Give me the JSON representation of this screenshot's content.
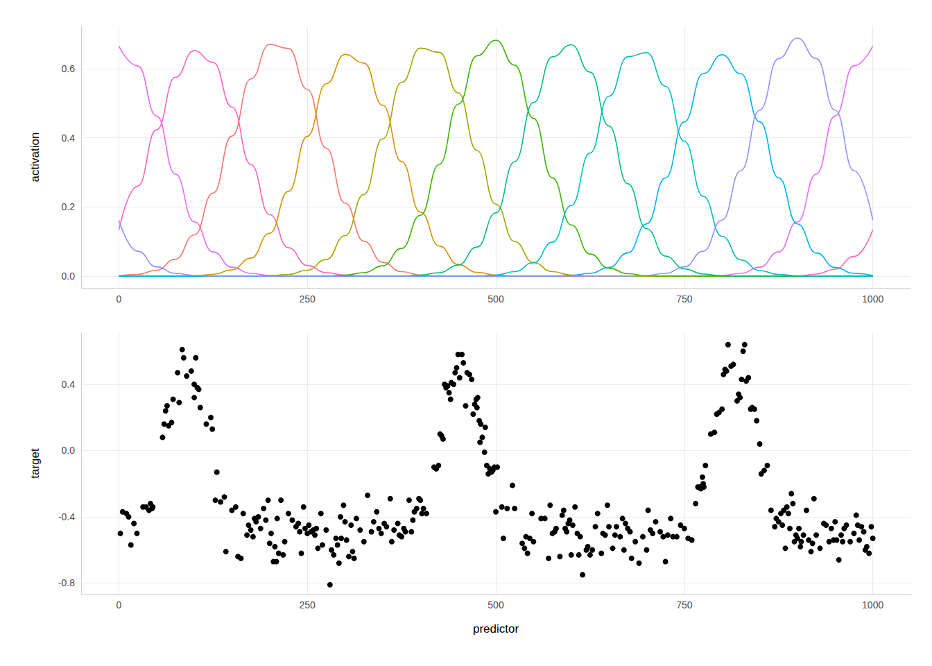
{
  "chart_data": [
    {
      "type": "line",
      "y_label": "activation",
      "x": [
        0,
        25,
        50,
        75,
        100,
        125,
        150,
        175,
        200,
        225,
        250,
        275,
        300,
        325,
        350,
        375,
        400,
        425,
        450,
        475,
        500,
        525,
        550,
        575,
        600,
        625,
        650,
        675,
        700,
        725,
        750,
        775,
        800,
        825,
        850,
        875,
        900,
        925,
        950,
        975,
        1000
      ],
      "series": [
        {
          "color": "#E76BF3",
          "values": [
            0.665,
            0.608,
            0.463,
            0.295,
            0.157,
            0.07,
            0.026,
            0.008,
            0.002,
            0,
            0,
            0,
            0,
            0,
            0,
            0,
            0,
            0,
            0,
            0,
            0,
            0,
            0,
            0,
            0,
            0,
            0,
            0,
            0,
            0,
            0,
            0,
            0.002,
            0.008,
            0.026,
            0.07,
            0.157,
            0.295,
            0.463,
            0.608,
            0.665
          ]
        },
        {
          "color": "#FF62BC",
          "values": [
            0.134,
            0.26,
            0.423,
            0.575,
            0.652,
            0.618,
            0.489,
            0.323,
            0.178,
            0.082,
            0.031,
            0.01,
            0.003,
            0,
            0,
            0,
            0,
            0,
            0,
            0,
            0,
            0,
            0,
            0,
            0,
            0,
            0,
            0,
            0,
            0,
            0,
            0,
            0,
            0,
            0,
            0,
            0,
            0.006,
            0.02,
            0.057,
            0.134
          ]
        },
        {
          "color": "#F8766D",
          "values": [
            0.001,
            0.005,
            0.017,
            0.049,
            0.119,
            0.24,
            0.405,
            0.57,
            0.67,
            0.658,
            0.54,
            0.37,
            0.211,
            0.101,
            0.04,
            0.013,
            0.003,
            0,
            0,
            0,
            0,
            0,
            0,
            0,
            0,
            0,
            0,
            0,
            0,
            0,
            0,
            0,
            0,
            0,
            0,
            0,
            0,
            0,
            0,
            0,
            0
          ]
        },
        {
          "color": "#D89000",
          "values": [
            0,
            0,
            0,
            0,
            0.001,
            0.005,
            0.018,
            0.052,
            0.124,
            0.245,
            0.404,
            0.556,
            0.641,
            0.616,
            0.494,
            0.331,
            0.185,
            0.087,
            0.034,
            0.011,
            0.003,
            0,
            0,
            0,
            0,
            0,
            0,
            0,
            0,
            0,
            0,
            0,
            0,
            0,
            0,
            0,
            0,
            0,
            0,
            0,
            0
          ]
        },
        {
          "color": "#A3A500",
          "values": [
            0,
            0,
            0,
            0,
            0,
            0,
            0,
            0,
            0.001,
            0.005,
            0.017,
            0.048,
            0.117,
            0.236,
            0.397,
            0.56,
            0.659,
            0.647,
            0.53,
            0.363,
            0.208,
            0.1,
            0.039,
            0.013,
            0.003,
            0,
            0,
            0,
            0,
            0,
            0,
            0,
            0,
            0,
            0,
            0,
            0,
            0,
            0,
            0,
            0
          ]
        },
        {
          "color": "#39B600",
          "values": [
            0,
            0,
            0,
            0,
            0,
            0,
            0,
            0,
            0,
            0,
            0,
            0,
            0.003,
            0.01,
            0.03,
            0.08,
            0.176,
            0.323,
            0.497,
            0.637,
            0.682,
            0.61,
            0.456,
            0.284,
            0.148,
            0.064,
            0.023,
            0.007,
            0.001,
            0,
            0,
            0,
            0,
            0,
            0,
            0,
            0,
            0,
            0,
            0,
            0
          ]
        },
        {
          "color": "#00BF7D",
          "values": [
            0,
            0,
            0,
            0,
            0,
            0,
            0,
            0,
            0,
            0,
            0,
            0,
            0,
            0,
            0,
            0,
            0.003,
            0.01,
            0.032,
            0.084,
            0.183,
            0.331,
            0.502,
            0.634,
            0.669,
            0.59,
            0.434,
            0.267,
            0.137,
            0.058,
            0.021,
            0.006,
            0.001,
            0,
            0,
            0,
            0,
            0,
            0,
            0,
            0
          ]
        },
        {
          "color": "#00BFC4",
          "values": [
            0,
            0,
            0,
            0,
            0,
            0,
            0,
            0,
            0,
            0,
            0,
            0,
            0,
            0,
            0,
            0,
            0,
            0,
            0,
            0,
            0.003,
            0.013,
            0.039,
            0.098,
            0.204,
            0.356,
            0.52,
            0.634,
            0.646,
            0.549,
            0.39,
            0.231,
            0.115,
            0.047,
            0.016,
            0.005,
            0.001,
            0,
            0,
            0,
            0
          ]
        },
        {
          "color": "#00B0F6",
          "values": [
            0,
            0,
            0,
            0,
            0,
            0,
            0,
            0,
            0,
            0,
            0,
            0,
            0,
            0,
            0,
            0,
            0,
            0,
            0,
            0,
            0,
            0,
            0,
            0,
            0.002,
            0.008,
            0.025,
            0.067,
            0.151,
            0.284,
            0.446,
            0.585,
            0.64,
            0.585,
            0.446,
            0.284,
            0.151,
            0.067,
            0.025,
            0.008,
            0.002
          ]
        },
        {
          "color": "#9590FF",
          "values": [
            0.162,
            0.072,
            0.027,
            0.008,
            0.002,
            0,
            0,
            0,
            0,
            0,
            0,
            0,
            0,
            0,
            0,
            0,
            0,
            0,
            0,
            0,
            0,
            0,
            0,
            0,
            0,
            0,
            0,
            0,
            0.002,
            0.008,
            0.027,
            0.072,
            0.162,
            0.305,
            0.48,
            0.629,
            0.688,
            0.629,
            0.48,
            0.305,
            0.162
          ]
        }
      ],
      "xlim": [
        -50,
        1050
      ],
      "xticks": [
        0,
        250,
        500,
        750,
        1000
      ],
      "ylim": [
        -0.034,
        0.722
      ],
      "yticks": [
        {
          "value": 0,
          "label": "0.0"
        },
        0.2,
        0.4,
        0.6
      ],
      "line_style": "solid",
      "grid": true
    },
    {
      "type": "scatter",
      "x_label": "predictor",
      "y_label": "target",
      "color": "#000000",
      "marker": "circle",
      "x": [
        2,
        5,
        10,
        13,
        16,
        20,
        24,
        32,
        36,
        40,
        42,
        44,
        45,
        58,
        60,
        62,
        64,
        66,
        70,
        72,
        78,
        80,
        84,
        86,
        90,
        96,
        100,
        100,
        102,
        104,
        106,
        108,
        116,
        122,
        124,
        128,
        130,
        135,
        140,
        142,
        150,
        155,
        158,
        162,
        165,
        170,
        172,
        175,
        178,
        180,
        182,
        185,
        188,
        192,
        195,
        198,
        200,
        202,
        205,
        207,
        209,
        210,
        212,
        215,
        218,
        220,
        225,
        230,
        235,
        238,
        240,
        242,
        245,
        247,
        250,
        252,
        255,
        258,
        260,
        262,
        264,
        268,
        270,
        275,
        280,
        282,
        285,
        288,
        290,
        292,
        294,
        295,
        298,
        300,
        302,
        305,
        308,
        310,
        312,
        315,
        320,
        325,
        330,
        335,
        338,
        342,
        345,
        348,
        352,
        355,
        360,
        362,
        365,
        370,
        372,
        375,
        378,
        380,
        385,
        388,
        390,
        392,
        395,
        398,
        400,
        402,
        404,
        408,
        418,
        421,
        424,
        426,
        428,
        430,
        432,
        434,
        436,
        438,
        440,
        441,
        444,
        446,
        448,
        450,
        452,
        455,
        457,
        460,
        462,
        465,
        468,
        470,
        472,
        474,
        475,
        476,
        478,
        479,
        480,
        482,
        485,
        486,
        488,
        490,
        492,
        494,
        496,
        498,
        500,
        502,
        508,
        510,
        515,
        522,
        525,
        535,
        538,
        540,
        542,
        545,
        548,
        550,
        560,
        565,
        570,
        572,
        575,
        578,
        580,
        585,
        588,
        590,
        592,
        594,
        596,
        598,
        600,
        602,
        605,
        608,
        610,
        612,
        615,
        620,
        622,
        625,
        628,
        632,
        635,
        640,
        642,
        645,
        648,
        650,
        655,
        658,
        660,
        665,
        668,
        670,
        672,
        675,
        678,
        680,
        685,
        690,
        695,
        700,
        702,
        705,
        708,
        712,
        718,
        722,
        725,
        728,
        732,
        735,
        740,
        745,
        750,
        755,
        760,
        765,
        768,
        770,
        772,
        774,
        775,
        776,
        778,
        785,
        790,
        793,
        796,
        800,
        802,
        804,
        806,
        808,
        812,
        815,
        820,
        822,
        824,
        826,
        828,
        830,
        832,
        835,
        838,
        840,
        843,
        846,
        850,
        852,
        856,
        860,
        865,
        870,
        872,
        875,
        878,
        880,
        882,
        884,
        886,
        888,
        890,
        892,
        894,
        896,
        898,
        900,
        902,
        904,
        905,
        908,
        912,
        915,
        918,
        920,
        922,
        925,
        930,
        935,
        938,
        942,
        945,
        948,
        950,
        952,
        955,
        958,
        960,
        962,
        965,
        970,
        975,
        978,
        980,
        982,
        985,
        988,
        990,
        992,
        995,
        998,
        1000
      ],
      "values": [
        -0.5,
        -0.37,
        -0.38,
        -0.4,
        -0.57,
        -0.44,
        -0.5,
        -0.34,
        -0.34,
        -0.36,
        -0.32,
        -0.35,
        -0.34,
        0.08,
        0.16,
        0.24,
        0.27,
        0.15,
        0.17,
        0.31,
        0.47,
        0.29,
        0.61,
        0.56,
        0.45,
        0.48,
        0.4,
        0.32,
        0.56,
        0.38,
        0.37,
        0.26,
        0.16,
        0.2,
        0.13,
        -0.3,
        -0.13,
        -0.31,
        -0.28,
        -0.61,
        -0.36,
        -0.34,
        -0.64,
        -0.65,
        -0.38,
        -0.51,
        -0.45,
        -0.48,
        -0.52,
        -0.41,
        -0.43,
        -0.4,
        -0.47,
        -0.35,
        -0.42,
        -0.3,
        -0.56,
        -0.5,
        -0.67,
        -0.58,
        -0.67,
        -0.41,
        -0.62,
        -0.3,
        -0.63,
        -0.55,
        -0.38,
        -0.42,
        -0.46,
        -0.44,
        -0.49,
        -0.62,
        -0.34,
        -0.47,
        -0.5,
        -0.45,
        -0.49,
        -0.48,
        -0.51,
        -0.47,
        -0.59,
        -0.38,
        -0.57,
        -0.48,
        -0.81,
        -0.6,
        -0.63,
        -0.53,
        -0.57,
        -0.68,
        -0.4,
        -0.53,
        -0.33,
        -0.43,
        -0.54,
        -0.64,
        -0.45,
        -0.61,
        -0.65,
        -0.41,
        -0.48,
        -0.55,
        -0.27,
        -0.49,
        -0.43,
        -0.37,
        -0.47,
        -0.5,
        -0.44,
        -0.46,
        -0.29,
        -0.55,
        -0.48,
        -0.44,
        -0.51,
        -0.52,
        -0.47,
        -0.49,
        -0.3,
        -0.49,
        -0.42,
        -0.37,
        -0.35,
        -0.29,
        -0.3,
        -0.38,
        -0.35,
        -0.38,
        -0.1,
        -0.11,
        -0.09,
        0.1,
        0.09,
        0.07,
        0.4,
        0.38,
        0.39,
        0.35,
        0.31,
        0.41,
        0.4,
        0.47,
        0.5,
        0.58,
        0.44,
        0.58,
        0.53,
        0.27,
        0.47,
        0.46,
        0.43,
        0.22,
        0.28,
        0.31,
        0.26,
        0.32,
        0.18,
        0.05,
        0.16,
        0.08,
        -0.01,
        0.14,
        -0.09,
        -0.14,
        -0.11,
        -0.13,
        -0.12,
        -0.1,
        -0.37,
        -0.1,
        -0.34,
        -0.53,
        -0.35,
        -0.21,
        -0.35,
        -0.56,
        -0.59,
        -0.52,
        -0.62,
        -0.53,
        -0.38,
        -0.55,
        -0.41,
        -0.41,
        -0.65,
        -0.33,
        -0.5,
        -0.49,
        -0.47,
        -0.64,
        -0.39,
        -0.36,
        -0.47,
        -0.49,
        -0.44,
        -0.42,
        -0.63,
        -0.45,
        -0.34,
        -0.5,
        -0.63,
        -0.52,
        -0.75,
        -0.6,
        -0.58,
        -0.63,
        -0.6,
        -0.46,
        -0.38,
        -0.62,
        -0.5,
        -0.51,
        -0.33,
        -0.46,
        -0.59,
        -0.51,
        -0.46,
        -0.52,
        -0.41,
        -0.6,
        -0.44,
        -0.47,
        -0.49,
        -0.65,
        -0.55,
        -0.68,
        -0.52,
        -0.6,
        -0.36,
        -0.48,
        -0.5,
        -0.43,
        -0.49,
        -0.52,
        -0.67,
        -0.51,
        -0.41,
        -0.52,
        -0.52,
        -0.45,
        -0.47,
        -0.53,
        -0.54,
        -0.32,
        -0.22,
        -0.22,
        -0.23,
        -0.16,
        -0.2,
        -0.22,
        -0.09,
        0.1,
        0.11,
        0.22,
        0.23,
        0.25,
        0.46,
        0.49,
        0.48,
        0.64,
        0.51,
        0.52,
        0.3,
        0.34,
        0.32,
        0.43,
        0.6,
        0.64,
        0.42,
        0.44,
        0.25,
        0.26,
        0.25,
        0.18,
        0.04,
        -0.14,
        -0.12,
        -0.09,
        -0.36,
        -0.46,
        -0.41,
        -0.43,
        -0.38,
        -0.45,
        -0.36,
        -0.59,
        -0.34,
        -0.38,
        -0.47,
        -0.26,
        -0.32,
        -0.55,
        -0.51,
        -0.53,
        -0.47,
        -0.58,
        -0.55,
        -0.51,
        -0.36,
        -0.54,
        -0.61,
        -0.56,
        -0.29,
        -0.51,
        -0.59,
        -0.44,
        -0.45,
        -0.55,
        -0.47,
        -0.54,
        -0.43,
        -0.54,
        -0.66,
        -0.51,
        -0.55,
        -0.47,
        -0.45,
        -0.55,
        -0.5,
        -0.39,
        -0.45,
        -0.54,
        -0.46,
        -0.49,
        -0.6,
        -0.58,
        -0.62,
        -0.46,
        -0.53
      ],
      "xlim": [
        -50,
        1050
      ],
      "xticks": [
        0,
        250,
        500,
        750,
        1000
      ],
      "ylim": [
        -0.865,
        0.71
      ],
      "yticks": [
        -0.8,
        -0.4,
        {
          "value": 0,
          "label": "0.0"
        },
        0.4
      ],
      "grid": true
    }
  ]
}
